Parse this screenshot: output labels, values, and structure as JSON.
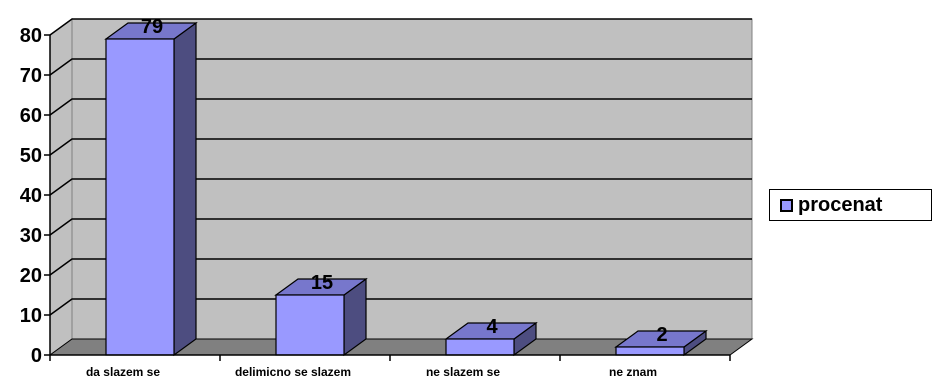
{
  "chart_data": {
    "type": "bar",
    "categories": [
      "da slazem se",
      "delimicno se slazem",
      "ne slazem se",
      "ne znam"
    ],
    "series": [
      {
        "name": "procenat",
        "values": [
          79,
          15,
          4,
          2
        ]
      }
    ],
    "data_labels": [
      "79",
      "15",
      "4",
      "2"
    ],
    "ylim": [
      0,
      80
    ],
    "yticks": [
      "0",
      "10",
      "20",
      "30",
      "40",
      "50",
      "60",
      "70",
      "80"
    ],
    "grid": true,
    "legend_position": "right",
    "three_d": true,
    "colors": {
      "bar_front": "#9999ff",
      "bar_top": "#7777cc",
      "bar_side": "#4d4d80",
      "wall": "#c0c0c0",
      "floor": "#808080",
      "grid": "#000000"
    }
  }
}
